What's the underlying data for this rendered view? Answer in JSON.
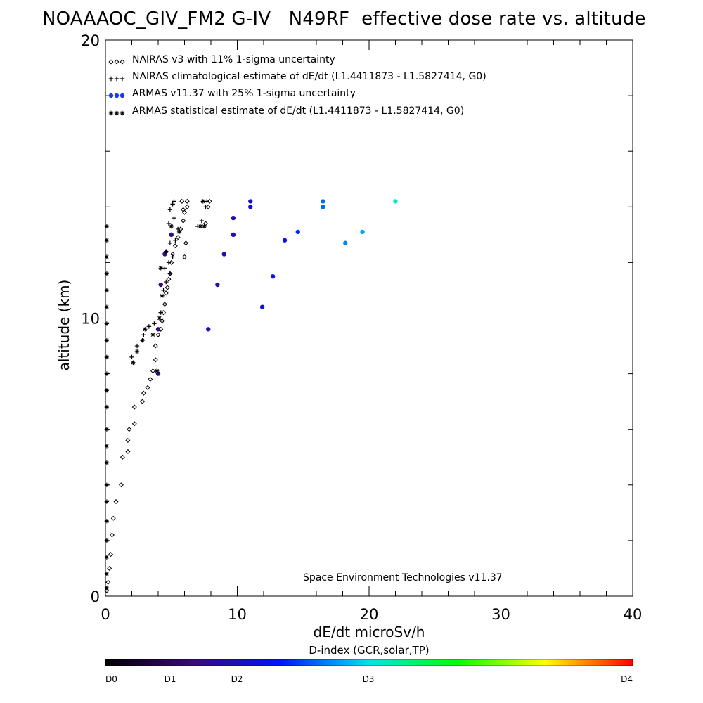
{
  "chart_data": {
    "type": "scatter",
    "title": "NOAAAOC_GIV_FM2 G-IV   N49RF  effective dose rate vs. altitude",
    "xlabel": "dE/dt microSv/h",
    "ylabel": "altitude (km)",
    "xlim": [
      0,
      40
    ],
    "ylim": [
      0,
      20
    ],
    "x_ticks": [
      0,
      10,
      20,
      30,
      40
    ],
    "y_ticks": [
      0,
      10,
      20
    ],
    "grid": false,
    "legend_position": "top-left",
    "credit": "Space Environment Technologies v11.37",
    "colorbar": {
      "title": "D-index (GCR,solar,TP)",
      "labels": [
        {
          "label": "D0",
          "value": 0
        },
        {
          "label": "D1",
          "value": 1
        },
        {
          "label": "D2",
          "value": 2
        },
        {
          "label": "D3",
          "value": 3
        },
        {
          "label": "D4",
          "value": 4
        }
      ],
      "stops": [
        "#000000",
        "#3a0a78",
        "#0014ff",
        "#00e6e6",
        "#00ff00",
        "#ffff00",
        "#ff0000"
      ]
    },
    "series": [
      {
        "name": "NAIRAS v3 with 11% 1-sigma uncertainty",
        "marker": "diamond",
        "color": "#000000",
        "points": [
          [
            0.1,
            0.2
          ],
          [
            0.2,
            0.5
          ],
          [
            0.3,
            1.0
          ],
          [
            0.4,
            1.5
          ],
          [
            0.5,
            2.2
          ],
          [
            0.6,
            2.8
          ],
          [
            0.8,
            3.4
          ],
          [
            1.2,
            4.0
          ],
          [
            1.3,
            5.0
          ],
          [
            1.7,
            5.2
          ],
          [
            1.7,
            5.6
          ],
          [
            1.8,
            6.0
          ],
          [
            2.2,
            6.2
          ],
          [
            2.2,
            6.8
          ],
          [
            2.8,
            7.0
          ],
          [
            2.9,
            7.3
          ],
          [
            3.2,
            7.5
          ],
          [
            3.4,
            7.8
          ],
          [
            3.6,
            8.1
          ],
          [
            3.8,
            8.5
          ],
          [
            3.8,
            9.0
          ],
          [
            4.0,
            9.4
          ],
          [
            4.2,
            9.6
          ],
          [
            4.3,
            9.9
          ],
          [
            4.4,
            10.2
          ],
          [
            4.5,
            10.5
          ],
          [
            4.6,
            10.9
          ],
          [
            4.7,
            11.1
          ],
          [
            4.8,
            11.4
          ],
          [
            4.9,
            11.6
          ],
          [
            5.0,
            12.0
          ],
          [
            5.1,
            12.3
          ],
          [
            5.3,
            12.6
          ],
          [
            5.5,
            12.9
          ],
          [
            5.7,
            13.2
          ],
          [
            5.9,
            13.5
          ],
          [
            6.0,
            13.8
          ],
          [
            6.2,
            14.0
          ],
          [
            6.2,
            14.2
          ],
          [
            5.8,
            14.2
          ],
          [
            7.9,
            14.2
          ],
          [
            7.8,
            14.0
          ],
          [
            7.6,
            13.4
          ],
          [
            6.1,
            12.7
          ],
          [
            6.0,
            12.2
          ],
          [
            5.9,
            13.9
          ]
        ]
      },
      {
        "name": "NAIRAS climatological estimate of dE/dt (L1.4411873 - L1.5827414, G0)",
        "marker": "plus",
        "color": "#000000",
        "points": [
          [
            2.0,
            8.6
          ],
          [
            2.4,
            9.0
          ],
          [
            2.9,
            9.4
          ],
          [
            3.3,
            9.7
          ],
          [
            3.7,
            9.8
          ],
          [
            4.2,
            10.2
          ],
          [
            4.4,
            11.0
          ],
          [
            4.6,
            11.3
          ],
          [
            4.9,
            11.6
          ],
          [
            4.8,
            12.0
          ],
          [
            5.1,
            12.2
          ],
          [
            4.9,
            12.7
          ],
          [
            5.3,
            12.8
          ],
          [
            4.8,
            13.4
          ],
          [
            5.2,
            13.6
          ],
          [
            4.9,
            13.9
          ],
          [
            5.1,
            14.1
          ],
          [
            5.2,
            14.2
          ],
          [
            7.7,
            14.2
          ],
          [
            7.6,
            14.0
          ],
          [
            7.3,
            13.5
          ],
          [
            7.0,
            13.3
          ],
          [
            5.5,
            13.2
          ],
          [
            4.5,
            11.8
          ]
        ]
      },
      {
        "name": "ARMAS v11.37 with 25% 1-sigma uncertainty",
        "marker": "dot",
        "color": "#2a1d9a",
        "points": [
          [
            4.0,
            8.0,
            0.6
          ],
          [
            4.0,
            9.6,
            0.6
          ],
          [
            4.2,
            11.2,
            0.7
          ],
          [
            4.5,
            12.3,
            0.7
          ],
          [
            5.0,
            13.0,
            0.7
          ],
          [
            7.8,
            9.6,
            0.9
          ],
          [
            8.5,
            11.2,
            0.9
          ],
          [
            9.0,
            12.3,
            0.9
          ],
          [
            9.7,
            13.0,
            1.0
          ],
          [
            9.7,
            13.6,
            1.0
          ],
          [
            11.0,
            14.0,
            1.1
          ],
          [
            11.0,
            14.2,
            1.1
          ],
          [
            11.9,
            10.4,
            1.1
          ],
          [
            12.7,
            11.5,
            1.2
          ],
          [
            13.6,
            12.8,
            1.2
          ],
          [
            14.6,
            13.1,
            1.4
          ],
          [
            16.5,
            14.0,
            1.6
          ],
          [
            16.5,
            14.2,
            1.6
          ],
          [
            18.2,
            12.7,
            1.7
          ],
          [
            19.5,
            13.1,
            1.8
          ],
          [
            22.0,
            14.2,
            2.1
          ]
        ]
      },
      {
        "name": "ARMAS statistical estimate of dE/dt (L1.4411873 - L1.5827414, G0)",
        "marker": "asterisk",
        "color": "#000000",
        "points": [
          [
            0.1,
            0.3
          ],
          [
            0.1,
            0.8
          ],
          [
            0.1,
            1.4
          ],
          [
            0.1,
            2.0
          ],
          [
            0.1,
            2.7
          ],
          [
            0.1,
            3.4
          ],
          [
            0.1,
            4.0
          ],
          [
            0.1,
            4.8
          ],
          [
            0.1,
            5.4
          ],
          [
            0.1,
            6.0
          ],
          [
            0.1,
            6.8
          ],
          [
            0.1,
            7.4
          ],
          [
            0.1,
            8.0
          ],
          [
            0.1,
            8.6
          ],
          [
            0.1,
            9.2
          ],
          [
            0.1,
            9.8
          ],
          [
            0.1,
            10.4
          ],
          [
            0.1,
            11.0
          ],
          [
            0.1,
            11.6
          ],
          [
            0.1,
            12.2
          ],
          [
            0.1,
            12.8
          ],
          [
            0.1,
            13.3
          ],
          [
            2.1,
            8.4
          ],
          [
            2.4,
            8.8
          ],
          [
            2.8,
            9.2
          ],
          [
            3.0,
            9.6
          ],
          [
            3.6,
            9.4
          ],
          [
            3.9,
            8.1
          ],
          [
            4.1,
            10.0
          ],
          [
            4.3,
            10.8
          ],
          [
            4.2,
            11.8
          ],
          [
            4.6,
            12.4
          ],
          [
            5.0,
            13.3
          ],
          [
            5.6,
            13.1
          ],
          [
            7.2,
            13.3
          ],
          [
            7.5,
            13.3
          ],
          [
            7.4,
            14.2
          ]
        ]
      }
    ]
  }
}
